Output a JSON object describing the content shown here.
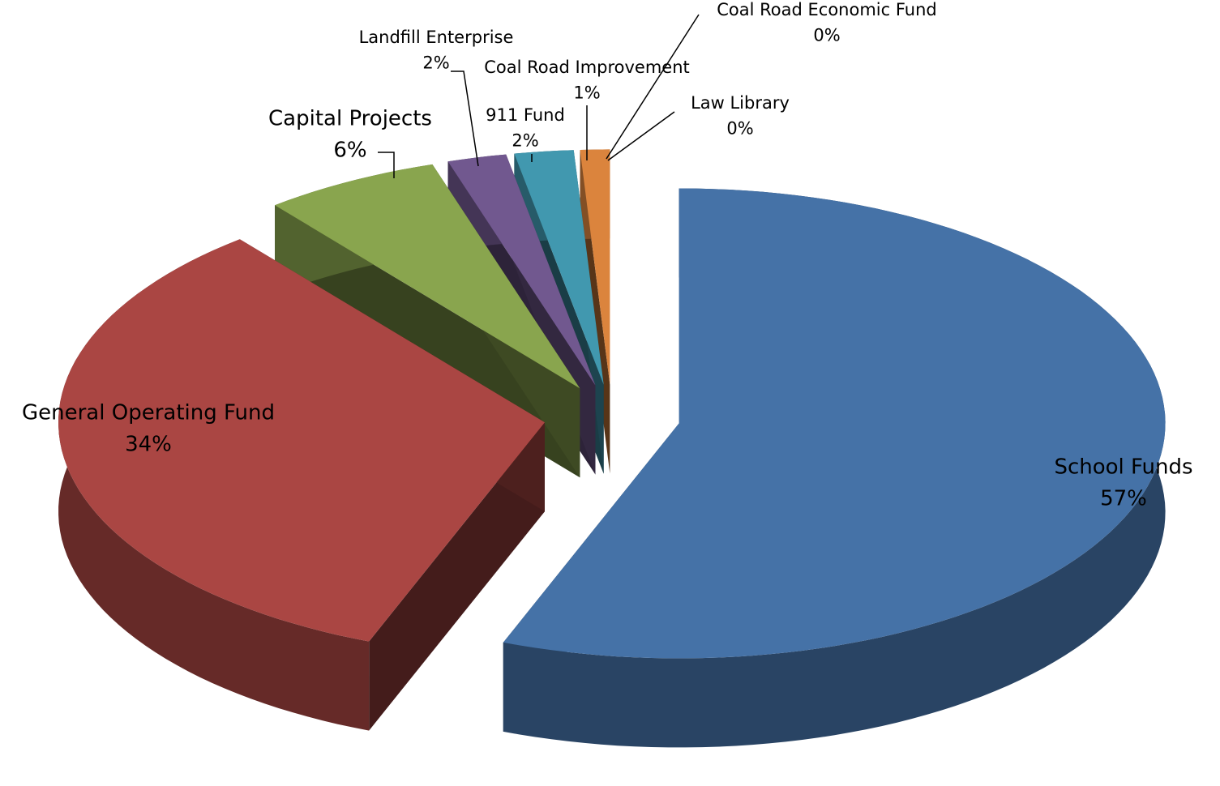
{
  "chart_data": {
    "type": "pie3d",
    "categories": [
      "School Funds",
      "General Operating Fund",
      "Capital Projects",
      "Landfill Enterprise",
      "911 Fund",
      "Coal Road Improvement",
      "Coal Road Economic Fund",
      "Law Library"
    ],
    "values": [
      57,
      34,
      6,
      2,
      2,
      1,
      0,
      0
    ],
    "value_labels": [
      "57%",
      "34%",
      "6%",
      "2%",
      "2%",
      "1%",
      "0%",
      "0%"
    ],
    "colors": [
      "#4572a7",
      "#aa4643",
      "#89a54e",
      "#71588f",
      "#4198af",
      "#db843d",
      "#93a9cf",
      "#b9cde5"
    ]
  }
}
